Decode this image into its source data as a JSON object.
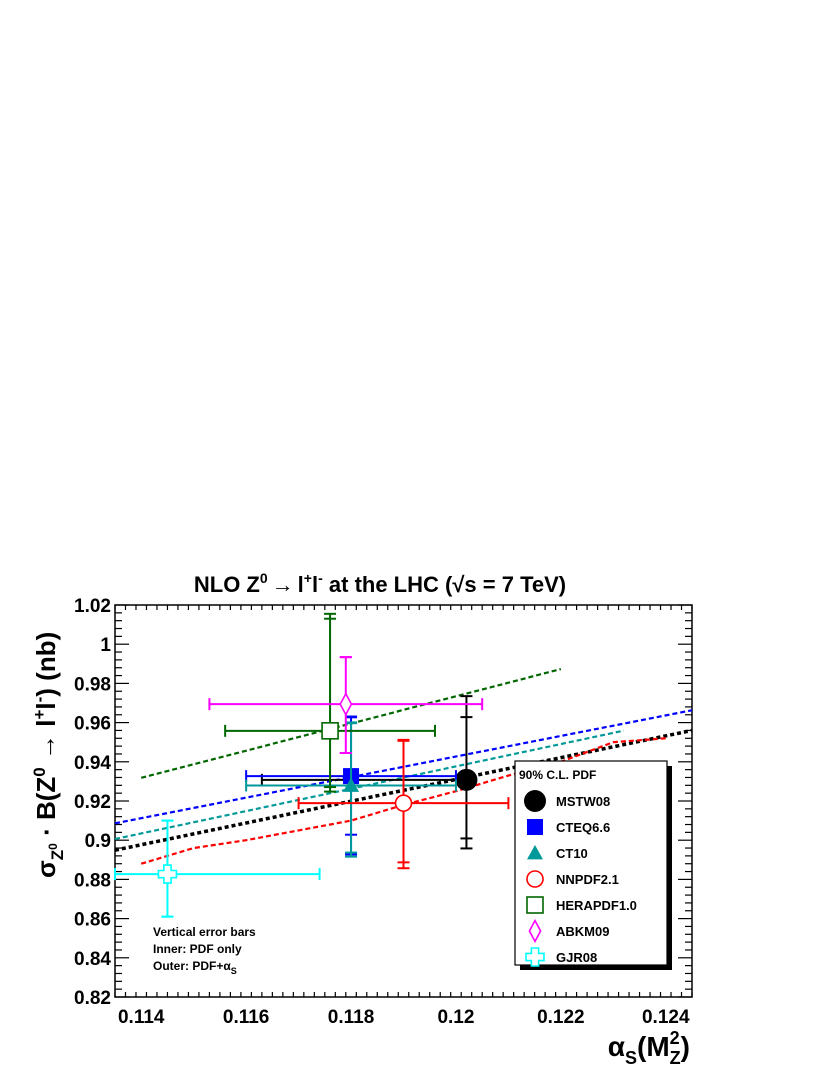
{
  "chart_data": {
    "type": "scatter",
    "title_parts": {
      "pre": "NLO Z",
      "sup": "0",
      "arrow": "→",
      "lepton_l": "l",
      "lepton_plus": "+",
      "lepton_r": "l",
      "lepton_minus": "-",
      "post": " at the LHC (",
      "sqrt": "√",
      "s_label": "s = 7 TeV)"
    },
    "xlabel_parts": {
      "alpha": "α",
      "sub": "S",
      "open": "(M",
      "m_sup": "2",
      "m_sub": "Z",
      "close": ")"
    },
    "ylabel_parts": {
      "sigma": "σ",
      "sub": "Z",
      "subsup": "0",
      "dot": " · B(Z",
      "zsup": "0",
      "arrow": " → ",
      "l1": "l",
      "plus": "+",
      "l2": "l",
      "minus": "-",
      "close": ")  (nb)"
    },
    "xlim": [
      0.1135,
      0.1245
    ],
    "ylim": [
      0.82,
      1.02
    ],
    "x_ticks": [
      0.114,
      0.116,
      0.118,
      0.12,
      0.122,
      0.124
    ],
    "x_tick_labels": [
      "0.114",
      "0.116",
      "0.118",
      "0.12",
      "0.122",
      "0.124"
    ],
    "y_ticks": [
      0.82,
      0.84,
      0.86,
      0.88,
      0.9,
      0.92,
      0.94,
      0.96,
      0.98,
      1.0,
      1.02
    ],
    "y_tick_labels": [
      "0.82",
      "0.84",
      "0.86",
      "0.88",
      "0.9",
      "0.92",
      "0.94",
      "0.96",
      "0.98",
      "1",
      "1.02"
    ],
    "grid": false,
    "legend": {
      "title": "90% C.L. PDF",
      "placement": "right"
    },
    "note": {
      "line1": "Vertical error bars",
      "line2": "Inner: PDF only",
      "line3_pre": "Outer: PDF+α",
      "line3_sub": "S"
    },
    "series": [
      {
        "name": "MSTW08",
        "color": "#000000",
        "marker": "filled-circle",
        "x": 0.1202,
        "y": 0.9308,
        "x_err": [
          0.1163,
          0.1202
        ],
        "y_inner": [
          0.9009,
          0.9628
        ],
        "y_outer": [
          0.8958,
          0.9735
        ],
        "trend": {
          "x": [
            0.1135,
            0.1245
          ],
          "y": [
            0.8949,
            0.956
          ]
        }
      },
      {
        "name": "CTEQ6.6",
        "color": "#0000ff",
        "marker": "filled-square",
        "x": 0.118,
        "y": 0.9327,
        "x_err": [
          0.116,
          0.12
        ],
        "y_inner": [
          0.9028,
          0.9627
        ],
        "y_outer": [
          0.8927,
          0.9631
        ],
        "trend": {
          "x": [
            0.1135,
            0.1245
          ],
          "y": [
            0.9086,
            0.9663
          ]
        }
      },
      {
        "name": "CT10",
        "color": "#009999",
        "marker": "filled-triangle",
        "x": 0.118,
        "y": 0.9279,
        "x_err": [
          0.116,
          0.12
        ],
        "y_inner": [
          0.8937,
          0.9597
        ],
        "y_outer": [
          0.8916,
          0.9601
        ],
        "trend": {
          "x": [
            0.1135,
            0.1232
          ],
          "y": [
            0.9006,
            0.9559
          ]
        }
      },
      {
        "name": "NNPDF2.1",
        "color": "#ff0000",
        "marker": "open-circle",
        "x": 0.119,
        "y": 0.9189,
        "x_err": [
          0.117,
          0.121
        ],
        "y_inner": [
          0.8887,
          0.9507
        ],
        "y_outer": [
          0.8857,
          0.9512
        ],
        "trend": {
          "x": [
            0.114,
            0.115,
            0.116,
            0.117,
            0.118,
            0.119,
            0.12,
            0.121,
            0.122,
            0.123,
            0.124
          ],
          "y": [
            0.888,
            0.896,
            0.9,
            0.905,
            0.91,
            0.918,
            0.925,
            0.933,
            0.94,
            0.95,
            0.952
          ]
        }
      },
      {
        "name": "HERAPDF1.0",
        "color": "#006600",
        "marker": "open-square",
        "x": 0.1176,
        "y": 0.9558,
        "x_err": [
          0.1156,
          0.1196
        ],
        "y_inner": [
          0.9271,
          1.013
        ],
        "y_outer": [
          0.9248,
          1.0155
        ],
        "trend": {
          "x": [
            0.114,
            0.122
          ],
          "y": [
            0.9318,
            0.9873
          ]
        }
      },
      {
        "name": "ABKM09",
        "color": "#ff00ff",
        "marker": "open-diamond",
        "x": 0.1179,
        "y": 0.9694,
        "x_err": [
          0.1153,
          0.1205
        ],
        "y_inner": [
          0.9445,
          0.9934
        ],
        "y_outer": [
          0.9445,
          0.9934
        ],
        "trend": null
      },
      {
        "name": "GJR08",
        "color": "#00ffff",
        "marker": "open-cross",
        "x": 0.1145,
        "y": 0.8827,
        "x_err": [
          0.1135,
          0.1174
        ],
        "y_inner": [
          0.861,
          0.91
        ],
        "y_outer": [
          0.861,
          0.91
        ],
        "trend": null
      }
    ]
  }
}
